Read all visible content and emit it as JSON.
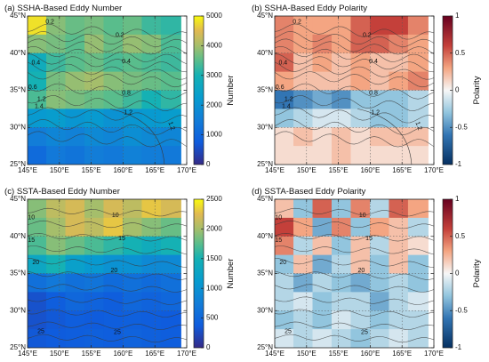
{
  "figure": {
    "panels": [
      {
        "id": "a",
        "label": "(a)",
        "title": "SSHA-Based Eddy Number",
        "colorbar_label": "Number",
        "colormap": "parula",
        "colorbar_ticks": [
          "5000",
          "4000",
          "3000",
          "2000",
          "1000",
          "0"
        ],
        "contour_labels": [
          "0.2",
          "0.2",
          "0.4",
          "0.4",
          "0.6",
          "0.8",
          "1.2",
          "1.2",
          "1.2",
          "1.4"
        ]
      },
      {
        "id": "b",
        "label": "(b)",
        "title": "SSHA-Based Eddy Polarity",
        "colorbar_label": "Polarity",
        "colormap": "diverging",
        "colorbar_ticks": [
          "1",
          "0.5",
          "0",
          "-0.5",
          "-1"
        ],
        "contour_labels": [
          "0.2",
          "0.2",
          "0.4",
          "0.4",
          "0.6",
          "0.8",
          "1.2",
          "1.2",
          "1.2",
          "1.4"
        ]
      },
      {
        "id": "c",
        "label": "(c)",
        "title": "SSTA-Based Eddy Number",
        "colorbar_label": "Number",
        "colormap": "parula",
        "colorbar_ticks": [
          "2500",
          "2000",
          "1500",
          "1000",
          "500",
          "0"
        ],
        "contour_labels": [
          "10",
          "10",
          "15",
          "15",
          "20",
          "20",
          "25",
          "25"
        ]
      },
      {
        "id": "d",
        "label": "(d)",
        "title": "SSTA-Based Eddy Polarity",
        "colorbar_label": "Polarity",
        "colormap": "diverging",
        "colorbar_ticks": [
          "1",
          "0.5",
          "0",
          "-0.5",
          "-1"
        ],
        "contour_labels": [
          "10",
          "10",
          "15",
          "15",
          "20",
          "20",
          "25",
          "25"
        ]
      }
    ],
    "x_ticks": [
      "145°E",
      "150°E",
      "155°E",
      "160°E",
      "165°E",
      "170°E"
    ],
    "y_ticks": [
      "45°N",
      "40°N",
      "35°N",
      "30°N",
      "25°N"
    ]
  },
  "chart_data": [
    {
      "type": "heatmap",
      "title": "SSHA-Based Eddy Number",
      "colorbar": "Number",
      "xlim": [
        145,
        170
      ],
      "ylim": [
        25,
        45
      ],
      "clim": [
        0,
        5000
      ],
      "x_ticks": [
        145,
        150,
        155,
        160,
        165,
        170
      ],
      "y_ticks": [
        25,
        30,
        35,
        40,
        45
      ],
      "rows_lat": [
        43.75,
        41.25,
        38.75,
        36.25,
        33.75,
        31.25,
        28.75,
        26.25
      ],
      "cols_lon": [
        146.5,
        149.5,
        152.5,
        155.5,
        158.5,
        161.5,
        164.5,
        167.5
      ],
      "values": [
        [
          4800,
          3800,
          3600,
          3700,
          3500,
          3600,
          3300,
          3200
        ],
        [
          3800,
          3700,
          3500,
          3900,
          3600,
          3900,
          3800,
          3400
        ],
        [
          2800,
          3300,
          3500,
          3600,
          3400,
          3500,
          3400,
          3300
        ],
        [
          3000,
          3700,
          3900,
          4000,
          3800,
          3700,
          3600,
          3500
        ],
        [
          3400,
          3800,
          3700,
          3600,
          3500,
          3300,
          3000,
          3200
        ],
        [
          2200,
          2300,
          2100,
          2200,
          2000,
          2100,
          2200,
          2300
        ],
        [
          1500,
          1700,
          1600,
          1800,
          1700,
          1900,
          1800,
          1700
        ],
        [
          1100,
          1400,
          1300,
          1500,
          1400,
          1600,
          1500,
          1400
        ]
      ],
      "contour_levels": [
        0.2,
        0.4,
        0.6,
        0.8,
        1.2,
        1.4
      ]
    },
    {
      "type": "heatmap",
      "title": "SSHA-Based Eddy Polarity",
      "colorbar": "Polarity",
      "xlim": [
        145,
        170
      ],
      "ylim": [
        25,
        45
      ],
      "clim": [
        -1,
        1
      ],
      "x_ticks": [
        145,
        150,
        155,
        160,
        165,
        170
      ],
      "y_ticks": [
        25,
        30,
        35,
        40,
        45
      ],
      "rows_lat": [
        43.75,
        41.25,
        38.75,
        36.25,
        33.75,
        31.25,
        28.75,
        26.25
      ],
      "cols_lon": [
        146.5,
        149.5,
        152.5,
        155.5,
        158.5,
        161.5,
        164.5,
        167.5
      ],
      "values": [
        [
          0.4,
          0.3,
          0.3,
          0.3,
          0.5,
          0.6,
          0.6,
          0.4
        ],
        [
          0.4,
          0.3,
          0.4,
          0.3,
          0.5,
          0.5,
          0.4,
          0.3
        ],
        [
          0.5,
          0.2,
          0.3,
          0.2,
          0.3,
          0.2,
          0.2,
          0.3
        ],
        [
          0.3,
          0.2,
          0.2,
          0.2,
          0.3,
          0.2,
          0.3,
          0.4
        ],
        [
          -0.6,
          -0.5,
          -0.4,
          -0.5,
          -0.3,
          -0.3,
          -0.3,
          -0.2
        ],
        [
          -0.3,
          -0.2,
          -0.1,
          -0.1,
          -0.2,
          -0.3,
          -0.3,
          -0.2
        ],
        [
          0.1,
          0.2,
          0.1,
          0.2,
          0.1,
          0.2,
          0.2,
          0.2
        ],
        [
          0.1,
          0.1,
          0.1,
          0.2,
          0.1,
          0.1,
          0.1,
          0.1
        ]
      ],
      "contour_levels": [
        0.2,
        0.4,
        0.6,
        0.8,
        1.2,
        1.4
      ]
    },
    {
      "type": "heatmap",
      "title": "SSTA-Based Eddy Number",
      "colorbar": "Number",
      "xlim": [
        145,
        170
      ],
      "ylim": [
        25,
        45
      ],
      "clim": [
        0,
        2500
      ],
      "x_ticks": [
        145,
        150,
        155,
        160,
        165,
        170
      ],
      "y_ticks": [
        25,
        30,
        35,
        40,
        45
      ],
      "rows_lat": [
        43.75,
        41.25,
        38.75,
        36.25,
        33.75,
        31.25,
        28.75,
        26.25
      ],
      "cols_lon": [
        146.5,
        149.5,
        152.5,
        155.5,
        158.5,
        161.5,
        164.5,
        167.5
      ],
      "values": [
        [
          1900,
          2100,
          2200,
          2000,
          2200,
          2100,
          2300,
          2200
        ],
        [
          1800,
          2000,
          2200,
          2100,
          2300,
          2000,
          1900,
          1800
        ],
        [
          1700,
          1900,
          1800,
          1700,
          1600,
          1500,
          1400,
          1500
        ],
        [
          1300,
          1500,
          1200,
          1100,
          1000,
          1000,
          900,
          900
        ],
        [
          600,
          700,
          600,
          650,
          550,
          600,
          550,
          600
        ],
        [
          300,
          400,
          500,
          450,
          400,
          500,
          450,
          500
        ],
        [
          300,
          350,
          400,
          380,
          400,
          420,
          400,
          380
        ],
        [
          350,
          380,
          400,
          420,
          400,
          450,
          420,
          400
        ]
      ],
      "contour_levels": [
        10,
        15,
        20,
        25
      ]
    },
    {
      "type": "heatmap",
      "title": "SSTA-Based Eddy Polarity",
      "colorbar": "Polarity",
      "xlim": [
        145,
        170
      ],
      "ylim": [
        25,
        45
      ],
      "clim": [
        -1,
        1
      ],
      "x_ticks": [
        145,
        150,
        155,
        160,
        165,
        170
      ],
      "y_ticks": [
        25,
        30,
        35,
        40,
        45
      ],
      "rows_lat": [
        43.75,
        41.25,
        38.75,
        36.25,
        33.75,
        31.25,
        28.75,
        26.25
      ],
      "cols_lon": [
        146.5,
        149.5,
        152.5,
        155.5,
        158.5,
        161.5,
        164.5,
        167.5
      ],
      "values": [
        [
          0.2,
          -0.3,
          0.5,
          -0.3,
          0.4,
          -0.2,
          0.5,
          0.3
        ],
        [
          0.6,
          0.3,
          -0.4,
          0.4,
          -0.3,
          0.3,
          0.2,
          -0.2
        ],
        [
          0.4,
          -0.2,
          0.2,
          -0.3,
          0.2,
          -0.2,
          0.2,
          0.1
        ],
        [
          -0.3,
          0.2,
          -0.4,
          -0.2,
          0.2,
          -0.3,
          0.2,
          -0.3
        ],
        [
          -0.2,
          -0.4,
          -0.2,
          -0.3,
          -0.4,
          -0.3,
          -0.2,
          -0.3
        ],
        [
          -0.2,
          -0.1,
          -0.3,
          -0.2,
          -0.2,
          -0.4,
          -0.2,
          -0.1
        ],
        [
          -0.3,
          -0.2,
          -0.3,
          -0.1,
          -0.2,
          -0.3,
          -0.2,
          -0.2
        ],
        [
          -0.1,
          -0.2,
          -0.1,
          -0.2,
          -0.3,
          -0.2,
          -0.1,
          -0.2
        ]
      ],
      "contour_levels": [
        10,
        15,
        20,
        25
      ]
    }
  ]
}
